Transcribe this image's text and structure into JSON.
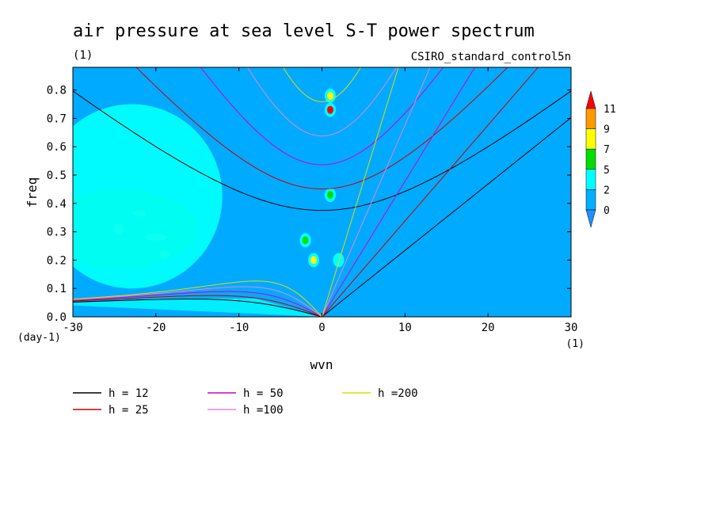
{
  "chart_data": {
    "type": "heatmap",
    "title": "air pressure at sea level S-T power spectrum",
    "subtitle_left": "(1)",
    "subtitle_right": "CSIRO_standard_control5n",
    "xlabel": "wvn",
    "ylabel": "freq",
    "x_unit": "(1)",
    "y_unit": "(day-1)",
    "xlim": [
      -30,
      30
    ],
    "ylim": [
      0.0,
      0.88
    ],
    "x_ticks": [
      -30,
      -20,
      -10,
      0,
      10,
      20,
      30
    ],
    "x_tick_labels": [
      "-30",
      "-20",
      "-10",
      "0",
      "10",
      "20",
      "30"
    ],
    "y_ticks": [
      0.0,
      0.1,
      0.2,
      0.3,
      0.4,
      0.5,
      0.6,
      0.7,
      0.8
    ],
    "y_tick_labels": [
      "0.0",
      "0.1",
      "0.2",
      "0.3",
      "0.4",
      "0.5",
      "0.6",
      "0.7",
      "0.8"
    ],
    "colorbar": {
      "levels": [
        0,
        2,
        5,
        7,
        9,
        11
      ],
      "labels": [
        "0",
        "2",
        "5",
        "7",
        "9",
        "11"
      ],
      "colors": [
        "#1e90ff",
        "#00b0ff",
        "#00ffff",
        "#00dd00",
        "#ffff00",
        "#ff9900",
        "#ff0000"
      ]
    },
    "background_color": "#00aaff",
    "features": [
      {
        "name": "low-wavenumber-westward-patch",
        "x_range": [
          -30,
          -15
        ],
        "y_range": [
          0.17,
          0.45
        ],
        "level": 5,
        "peak_level": 7
      },
      {
        "name": "wide-westward-band",
        "x_range": [
          -30,
          -12
        ],
        "y_range": [
          0.1,
          0.75
        ],
        "level": 2
      },
      {
        "name": "tidal-peak",
        "x": 1,
        "y": 0.73,
        "level": 11
      },
      {
        "name": "tidal-peak-2",
        "x": 1,
        "y": 0.78,
        "level": 7
      },
      {
        "name": "peak-0.43",
        "x": 1,
        "y": 0.43,
        "level": 5
      },
      {
        "name": "peak-0.27",
        "x": -2,
        "y": 0.27,
        "level": 5
      },
      {
        "name": "peak-0.2",
        "x": -1,
        "y": 0.2,
        "level": 7
      },
      {
        "name": "peak-0.2b",
        "x": 2,
        "y": 0.2,
        "level": 2
      }
    ],
    "series": [
      {
        "name": "h = 12",
        "equivalent_depth": 12,
        "color": "#000000"
      },
      {
        "name": "h = 25",
        "equivalent_depth": 25,
        "color": "#cc0000"
      },
      {
        "name": "h = 50",
        "equivalent_depth": 50,
        "color": "#cc00cc"
      },
      {
        "name": "h =100",
        "equivalent_depth": 100,
        "color": "#dd88dd"
      },
      {
        "name": "h =200",
        "equivalent_depth": 200,
        "color": "#dddd00"
      }
    ]
  }
}
